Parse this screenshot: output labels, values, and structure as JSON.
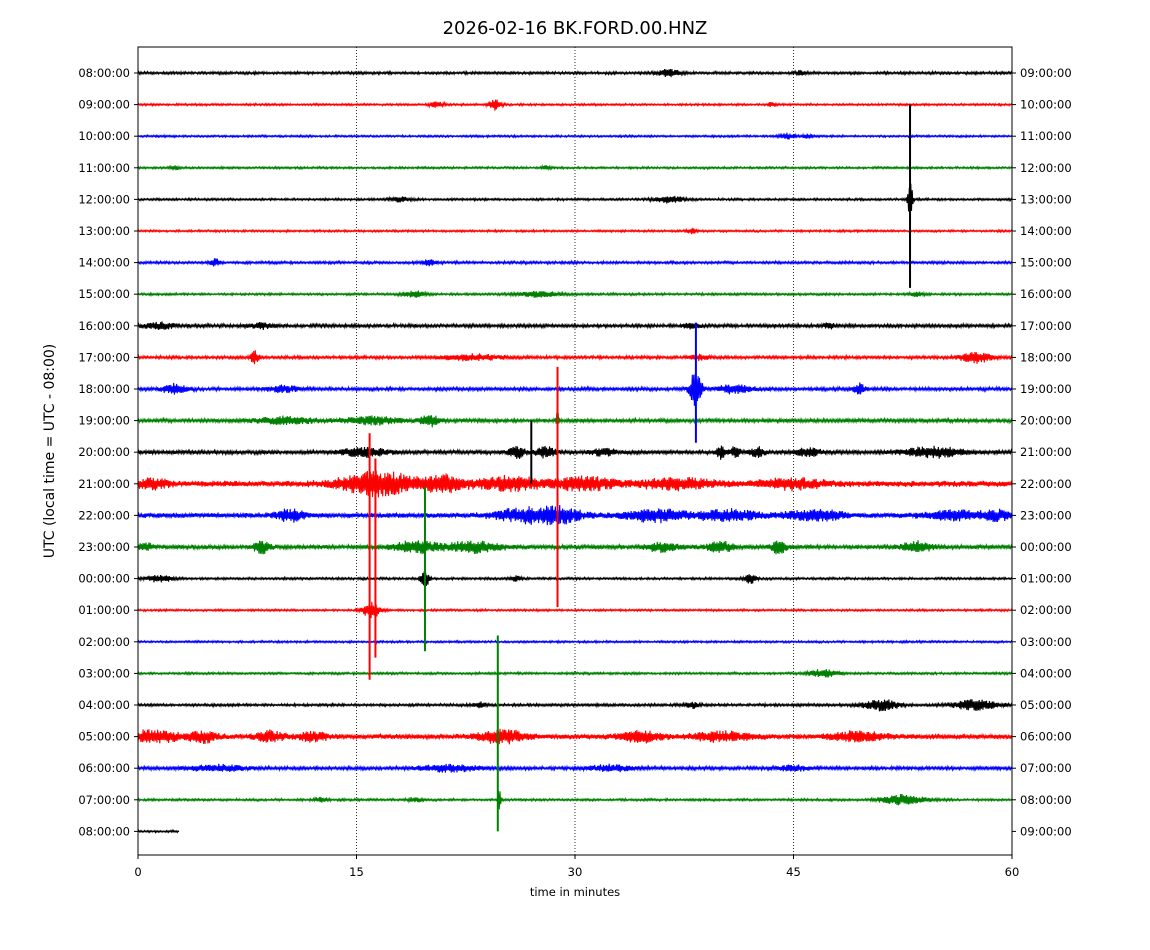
{
  "chart_data": {
    "type": "line",
    "title": "2026-02-16 BK.FORD.00.HNZ",
    "xlabel": "time in minutes",
    "ylabel": "UTC (local time = UTC - 08:00)",
    "xlim": [
      0,
      60
    ],
    "x_ticks": [
      0,
      15,
      30,
      45,
      60
    ],
    "grid": "vertical dotted lines at x = 15, 30, 45",
    "color_cycle": [
      "#000000",
      "#ff0000",
      "#0000ff",
      "#008000"
    ],
    "rows_left_labels": [
      "08:00:00",
      "09:00:00",
      "10:00:00",
      "11:00:00",
      "12:00:00",
      "13:00:00",
      "14:00:00",
      "15:00:00",
      "16:00:00",
      "17:00:00",
      "18:00:00",
      "19:00:00",
      "20:00:00",
      "21:00:00",
      "22:00:00",
      "23:00:00",
      "00:00:00",
      "01:00:00",
      "02:00:00",
      "03:00:00",
      "04:00:00",
      "05:00:00",
      "06:00:00",
      "07:00:00",
      "08:00:00"
    ],
    "rows_right_labels": [
      "09:00:00",
      "10:00:00",
      "11:00:00",
      "12:00:00",
      "13:00:00",
      "14:00:00",
      "15:00:00",
      "16:00:00",
      "17:00:00",
      "18:00:00",
      "19:00:00",
      "20:00:00",
      "21:00:00",
      "22:00:00",
      "23:00:00",
      "00:00:00",
      "01:00:00",
      "02:00:00",
      "03:00:00",
      "04:00:00",
      "05:00:00",
      "06:00:00",
      "07:00:00",
      "08:00:00",
      "09:00:00"
    ],
    "rows": [
      {
        "color": "#000000",
        "noise": 0.7,
        "end": 60,
        "bursts": [
          {
            "t": 36.5,
            "a": 1.6,
            "w": 0.8
          },
          {
            "t": 45.5,
            "a": 1.0,
            "w": 0.3
          }
        ]
      },
      {
        "color": "#ff0000",
        "noise": 0.55,
        "end": 60,
        "bursts": [
          {
            "t": 20.5,
            "a": 1.2,
            "w": 0.5
          },
          {
            "t": 24.5,
            "a": 2.5,
            "w": 0.4
          },
          {
            "t": 43.5,
            "a": 0.9,
            "w": 0.3
          }
        ]
      },
      {
        "color": "#0000ff",
        "noise": 0.55,
        "end": 60,
        "bursts": [
          {
            "t": 44.5,
            "a": 1.4,
            "w": 0.6
          },
          {
            "t": 46.0,
            "a": 0.9,
            "w": 0.4
          }
        ]
      },
      {
        "color": "#008000",
        "noise": 0.55,
        "end": 60,
        "bursts": [
          {
            "t": 2.5,
            "a": 1.0,
            "w": 0.3
          },
          {
            "t": 28.0,
            "a": 1.0,
            "w": 0.3
          }
        ]
      },
      {
        "color": "#000000",
        "noise": 0.6,
        "end": 60,
        "bursts": [
          {
            "t": 18.0,
            "a": 1.1,
            "w": 0.6
          },
          {
            "t": 36.5,
            "a": 1.6,
            "w": 1.0
          },
          {
            "t": 53.0,
            "a": 12.0,
            "w": 0.15
          }
        ]
      },
      {
        "color": "#ff0000",
        "noise": 0.55,
        "end": 60,
        "bursts": [
          {
            "t": 38.0,
            "a": 1.2,
            "w": 0.3
          }
        ]
      },
      {
        "color": "#0000ff",
        "noise": 0.7,
        "end": 60,
        "bursts": [
          {
            "t": 5.3,
            "a": 1.8,
            "w": 0.3
          },
          {
            "t": 20.0,
            "a": 1.3,
            "w": 0.5
          }
        ]
      },
      {
        "color": "#008000",
        "noise": 0.6,
        "end": 60,
        "bursts": [
          {
            "t": 19.0,
            "a": 1.5,
            "w": 0.8
          },
          {
            "t": 27.5,
            "a": 1.2,
            "w": 1.5
          },
          {
            "t": 53.5,
            "a": 1.0,
            "w": 0.5
          }
        ]
      },
      {
        "color": "#000000",
        "noise": 0.9,
        "end": 60,
        "bursts": [
          {
            "t": 1.5,
            "a": 1.4,
            "w": 1.0
          },
          {
            "t": 8.5,
            "a": 1.2,
            "w": 0.8
          },
          {
            "t": 38.0,
            "a": 1.2,
            "w": 0.5
          },
          {
            "t": 47.5,
            "a": 1.2,
            "w": 0.5
          }
        ]
      },
      {
        "color": "#ff0000",
        "noise": 0.8,
        "end": 60,
        "bursts": [
          {
            "t": 8.0,
            "a": 3.0,
            "w": 0.3
          },
          {
            "t": 23.0,
            "a": 1.3,
            "w": 2.0
          },
          {
            "t": 38.5,
            "a": 1.2,
            "w": 0.6
          },
          {
            "t": 57.5,
            "a": 2.5,
            "w": 1.0
          }
        ]
      },
      {
        "color": "#0000ff",
        "noise": 0.9,
        "end": 60,
        "bursts": [
          {
            "t": 2.5,
            "a": 2.2,
            "w": 0.8
          },
          {
            "t": 10.0,
            "a": 1.3,
            "w": 1.0
          },
          {
            "t": 38.3,
            "a": 9.0,
            "w": 0.4
          },
          {
            "t": 41.0,
            "a": 1.8,
            "w": 1.2
          },
          {
            "t": 49.5,
            "a": 2.5,
            "w": 0.4
          }
        ]
      },
      {
        "color": "#008000",
        "noise": 1.0,
        "end": 60,
        "bursts": [
          {
            "t": 10.0,
            "a": 1.5,
            "w": 2.0
          },
          {
            "t": 16.0,
            "a": 1.6,
            "w": 2.0
          },
          {
            "t": 20.0,
            "a": 3.0,
            "w": 0.6
          },
          {
            "t": 28.8,
            "a": 5.0,
            "w": 0.1
          }
        ]
      },
      {
        "color": "#000000",
        "noise": 1.0,
        "end": 60,
        "bursts": [
          {
            "t": 15.5,
            "a": 2.2,
            "w": 1.5
          },
          {
            "t": 26.0,
            "a": 2.5,
            "w": 0.6
          },
          {
            "t": 28.0,
            "a": 2.8,
            "w": 0.6
          },
          {
            "t": 32.0,
            "a": 1.8,
            "w": 0.8
          },
          {
            "t": 40.0,
            "a": 3.0,
            "w": 0.3
          },
          {
            "t": 41.0,
            "a": 3.0,
            "w": 0.3
          },
          {
            "t": 42.5,
            "a": 2.5,
            "w": 0.5
          },
          {
            "t": 46.0,
            "a": 2.0,
            "w": 0.8
          },
          {
            "t": 54.5,
            "a": 2.5,
            "w": 2.0
          }
        ]
      },
      {
        "color": "#ff0000",
        "noise": 1.6,
        "end": 60,
        "bursts": [
          {
            "t": 1.0,
            "a": 2.0,
            "w": 1.0
          },
          {
            "t": 16.5,
            "a": 5.5,
            "w": 2.5
          },
          {
            "t": 21.0,
            "a": 3.5,
            "w": 1.5
          },
          {
            "t": 25.5,
            "a": 3.0,
            "w": 2.0
          },
          {
            "t": 30.5,
            "a": 3.0,
            "w": 2.0
          },
          {
            "t": 37.0,
            "a": 2.0,
            "w": 3.0
          },
          {
            "t": 45.0,
            "a": 2.2,
            "w": 2.0
          }
        ]
      },
      {
        "color": "#0000ff",
        "noise": 1.3,
        "end": 60,
        "bursts": [
          {
            "t": 10.5,
            "a": 2.5,
            "w": 1.0
          },
          {
            "t": 26.5,
            "a": 3.0,
            "w": 2.0
          },
          {
            "t": 29.0,
            "a": 3.2,
            "w": 1.5
          },
          {
            "t": 35.5,
            "a": 2.8,
            "w": 2.0
          },
          {
            "t": 40.5,
            "a": 2.5,
            "w": 2.0
          },
          {
            "t": 46.5,
            "a": 2.5,
            "w": 2.0
          },
          {
            "t": 56.0,
            "a": 2.0,
            "w": 2.0
          },
          {
            "t": 59.0,
            "a": 2.0,
            "w": 1.0
          }
        ]
      },
      {
        "color": "#008000",
        "noise": 1.1,
        "end": 60,
        "bursts": [
          {
            "t": 0.5,
            "a": 2.0,
            "w": 0.5
          },
          {
            "t": 8.5,
            "a": 3.0,
            "w": 0.5
          },
          {
            "t": 19.0,
            "a": 2.5,
            "w": 1.5
          },
          {
            "t": 23.0,
            "a": 2.5,
            "w": 2.0
          },
          {
            "t": 36.0,
            "a": 2.2,
            "w": 1.0
          },
          {
            "t": 40.0,
            "a": 2.2,
            "w": 1.0
          },
          {
            "t": 44.0,
            "a": 3.0,
            "w": 0.5
          },
          {
            "t": 53.5,
            "a": 2.5,
            "w": 1.0
          }
        ]
      },
      {
        "color": "#000000",
        "noise": 0.6,
        "end": 60,
        "bursts": [
          {
            "t": 1.5,
            "a": 1.5,
            "w": 1.0
          },
          {
            "t": 19.7,
            "a": 4.5,
            "w": 0.3
          },
          {
            "t": 26.0,
            "a": 1.2,
            "w": 0.4
          },
          {
            "t": 42.0,
            "a": 2.5,
            "w": 0.4
          }
        ]
      },
      {
        "color": "#ff0000",
        "noise": 0.55,
        "end": 60,
        "bursts": [
          {
            "t": 16.0,
            "a": 4.0,
            "w": 0.6
          }
        ]
      },
      {
        "color": "#0000ff",
        "noise": 0.55,
        "end": 60,
        "bursts": []
      },
      {
        "color": "#008000",
        "noise": 0.6,
        "end": 60,
        "bursts": [
          {
            "t": 47.0,
            "a": 1.8,
            "w": 1.0
          }
        ]
      },
      {
        "color": "#000000",
        "noise": 0.7,
        "end": 60,
        "bursts": [
          {
            "t": 23.5,
            "a": 1.2,
            "w": 0.5
          },
          {
            "t": 38.0,
            "a": 1.3,
            "w": 0.5
          },
          {
            "t": 51.0,
            "a": 2.5,
            "w": 1.2
          },
          {
            "t": 57.5,
            "a": 2.5,
            "w": 1.5
          }
        ]
      },
      {
        "color": "#ff0000",
        "noise": 1.3,
        "end": 60,
        "bursts": [
          {
            "t": 1.0,
            "a": 2.5,
            "w": 2.0
          },
          {
            "t": 4.5,
            "a": 2.2,
            "w": 1.0
          },
          {
            "t": 9.0,
            "a": 2.2,
            "w": 1.0
          },
          {
            "t": 12.0,
            "a": 2.0,
            "w": 1.0
          },
          {
            "t": 25.0,
            "a": 3.2,
            "w": 1.5
          },
          {
            "t": 34.5,
            "a": 2.5,
            "w": 1.5
          },
          {
            "t": 40.0,
            "a": 2.0,
            "w": 2.0
          },
          {
            "t": 49.5,
            "a": 2.0,
            "w": 2.0
          }
        ]
      },
      {
        "color": "#0000ff",
        "noise": 0.9,
        "end": 60,
        "bursts": [
          {
            "t": 5.5,
            "a": 1.3,
            "w": 2.0
          },
          {
            "t": 21.5,
            "a": 1.5,
            "w": 2.0
          },
          {
            "t": 32.5,
            "a": 1.3,
            "w": 1.5
          },
          {
            "t": 45.0,
            "a": 1.2,
            "w": 1.0
          }
        ]
      },
      {
        "color": "#008000",
        "noise": 0.6,
        "end": 60,
        "bursts": [
          {
            "t": 12.5,
            "a": 1.0,
            "w": 0.4
          },
          {
            "t": 19.0,
            "a": 1.0,
            "w": 0.5
          },
          {
            "t": 24.8,
            "a": 5.0,
            "w": 0.1
          },
          {
            "t": 52.5,
            "a": 2.2,
            "w": 1.5
          }
        ]
      },
      {
        "color": "#000000",
        "noise": 0.55,
        "end": 2.8,
        "bursts": []
      }
    ],
    "spikes": [
      {
        "row": 4,
        "t": 53.0,
        "up_rows": 3.0,
        "down_rows": 2.8
      },
      {
        "row": 10,
        "t": 38.3,
        "up_rows": 2.1,
        "down_rows": 1.7
      },
      {
        "row": 12,
        "t": 27.0,
        "up_rows": 1.0,
        "down_rows": 1.0
      },
      {
        "row": 13,
        "t": 28.8,
        "up_rows": 3.7,
        "down_rows": 3.9
      },
      {
        "row": 13,
        "t": 15.9,
        "up_rows": 1.6,
        "down_rows": 6.2
      },
      {
        "row": 13,
        "t": 16.3,
        "up_rows": 0.8,
        "down_rows": 5.5
      },
      {
        "row": 15,
        "t": 19.7,
        "up_rows": 1.9,
        "down_rows": 3.3
      },
      {
        "row": 19,
        "t": 24.7,
        "up_rows": 1.2,
        "down_rows": 5.0
      }
    ]
  }
}
